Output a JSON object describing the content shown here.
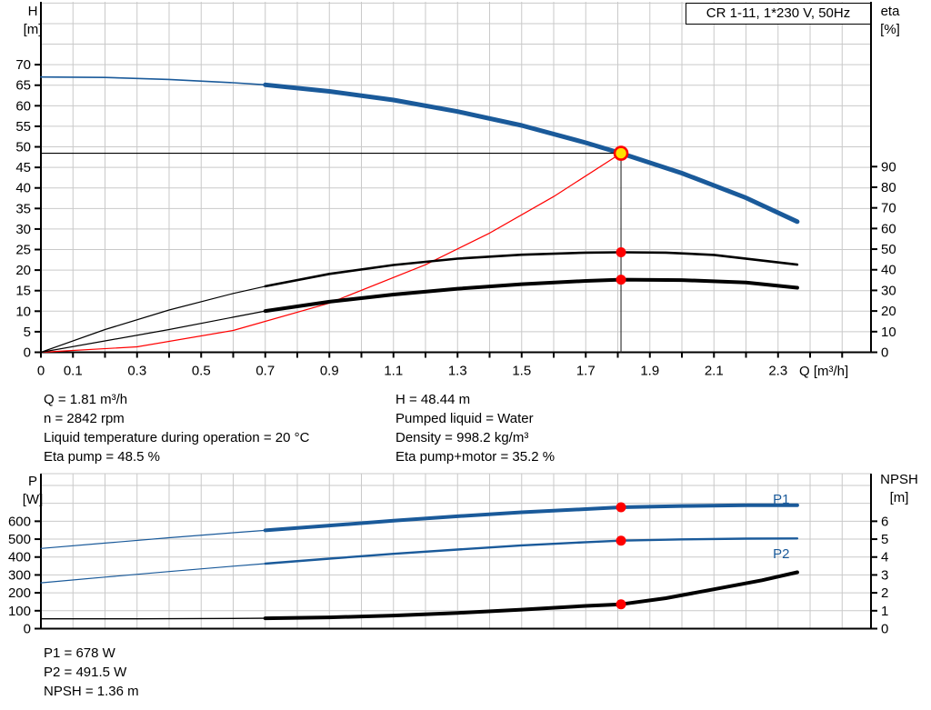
{
  "title_box": {
    "label": "CR 1-11, 1*230 V, 50Hz"
  },
  "colors": {
    "curve_blue": "#1a5a9a",
    "red": "#ff0000",
    "op_yellow": "#ffe100",
    "black": "#000000",
    "grid": "#c9c9c9",
    "crosshair": "#3a3a3a"
  },
  "annotations": {
    "block1_left": [
      "Q = 1.81 m³/h",
      "n = 2842 rpm",
      "Liquid temperature during operation = 20 °C",
      "Eta pump = 48.5 %"
    ],
    "block1_right": [
      "H = 48.44 m",
      "Pumped liquid = Water",
      "Density = 998.2 kg/m³",
      "Eta pump+motor = 35.2 %"
    ],
    "block2": [
      "P1 = 678 W",
      "P2 = 491.5 W",
      "NPSH = 1.36 m"
    ]
  },
  "chart_data": [
    {
      "type": "line",
      "title": "CR 1-11, 1*230 V, 50Hz",
      "x_axis": {
        "label": "Q [m³/h]",
        "lim": [
          0,
          2.59
        ],
        "grid_step": 0.1,
        "tick_step": 0.1,
        "tick_max": 2.5,
        "labeled_ticks": [
          "0",
          "0.1",
          "0.3",
          "0.5",
          "0.7",
          "0.9",
          "1.1",
          "1.3",
          "1.5",
          "1.7",
          "1.9",
          "2.1",
          "2.3"
        ]
      },
      "y_left": {
        "name": "H",
        "unit": "[m]",
        "lim": [
          0,
          85.3
        ],
        "grid_step": 5,
        "ticks": [
          "0",
          "5",
          "10",
          "15",
          "20",
          "25",
          "30",
          "35",
          "40",
          "45",
          "50",
          "55",
          "60",
          "65",
          "70"
        ]
      },
      "y_right": {
        "name": "eta",
        "unit": "[%]",
        "lim": [
          0,
          169.9
        ],
        "ticks": [
          "0",
          "10",
          "20",
          "30",
          "40",
          "50",
          "60",
          "70",
          "80",
          "90"
        ]
      },
      "series": [
        {
          "name": "system-curve",
          "axis": "left",
          "color": "red",
          "width_thin": 1.2,
          "width_bold": 1.2,
          "points": [
            [
              0,
              0
            ],
            [
              0.3,
              1.33
            ],
            [
              0.6,
              5.32
            ],
            [
              0.9,
              11.98
            ],
            [
              1.2,
              21.3
            ],
            [
              1.4,
              29.0
            ],
            [
              1.6,
              37.9
            ],
            [
              1.81,
              48.44
            ]
          ]
        },
        {
          "name": "eta-pump",
          "axis": "right",
          "color": "black",
          "width_thin": 1.2,
          "width_bold": 2.6,
          "bold_from": 0.7,
          "points": [
            [
              0,
              0
            ],
            [
              0.2,
              11
            ],
            [
              0.4,
              20.5
            ],
            [
              0.6,
              28.5
            ],
            [
              0.7,
              32
            ],
            [
              0.9,
              38
            ],
            [
              1.1,
              42.3
            ],
            [
              1.3,
              45.4
            ],
            [
              1.5,
              47.3
            ],
            [
              1.7,
              48.3
            ],
            [
              1.81,
              48.5
            ],
            [
              1.95,
              48.3
            ],
            [
              2.1,
              47.2
            ],
            [
              2.36,
              42.5
            ]
          ]
        },
        {
          "name": "eta-pump-motor",
          "axis": "right",
          "color": "black",
          "width_thin": 1.2,
          "width_bold": 4,
          "bold_from": 0.7,
          "points": [
            [
              0,
              0
            ],
            [
              0.2,
              5.5
            ],
            [
              0.4,
              11
            ],
            [
              0.6,
              17
            ],
            [
              0.7,
              20
            ],
            [
              0.9,
              24.5
            ],
            [
              1.1,
              28
            ],
            [
              1.3,
              30.8
            ],
            [
              1.5,
              33
            ],
            [
              1.7,
              34.6
            ],
            [
              1.81,
              35.2
            ],
            [
              2.0,
              35.0
            ],
            [
              2.2,
              33.8
            ],
            [
              2.36,
              31.3
            ]
          ]
        },
        {
          "name": "head-curve",
          "axis": "left",
          "color": "blue",
          "width_thin": 1.6,
          "width_bold": 5,
          "bold_from": 0.7,
          "points": [
            [
              0,
              67
            ],
            [
              0.2,
              66.9
            ],
            [
              0.4,
              66.4
            ],
            [
              0.6,
              65.6
            ],
            [
              0.7,
              65.1
            ],
            [
              0.9,
              63.5
            ],
            [
              1.1,
              61.4
            ],
            [
              1.3,
              58.6
            ],
            [
              1.5,
              55.2
            ],
            [
              1.7,
              51.0
            ],
            [
              1.81,
              48.44
            ],
            [
              2.0,
              43.6
            ],
            [
              2.2,
              37.6
            ],
            [
              2.36,
              31.8
            ]
          ]
        }
      ],
      "crosshair": {
        "q": 1.81,
        "v": 48.44
      },
      "dots": [
        {
          "q": 1.81,
          "v": 48.5,
          "axis": "right",
          "style": "red"
        },
        {
          "q": 1.81,
          "v": 35.2,
          "axis": "right",
          "style": "red"
        },
        {
          "q": 1.81,
          "v": 48.44,
          "axis": "left",
          "style": "op"
        }
      ]
    },
    {
      "type": "line",
      "x_axis": {
        "label": "",
        "lim": [
          0,
          2.59
        ],
        "grid_step": 0.1,
        "tick_step": 0,
        "tick_max": 0,
        "labeled_ticks": []
      },
      "y_left": {
        "name": "P",
        "unit": "[W]",
        "lim": [
          0,
          866
        ],
        "grid_step": 100,
        "ticks": [
          "0",
          "100",
          "200",
          "300",
          "400",
          "500",
          "600"
        ]
      },
      "y_right": {
        "name": "NPSH",
        "unit": "[m]",
        "lim": [
          0,
          8.66
        ],
        "ticks": [
          "0",
          "1",
          "2",
          "3",
          "4",
          "5",
          "6"
        ]
      },
      "series": [
        {
          "name": "P1",
          "label": "P1",
          "label_at": [
            2.31,
            723
          ],
          "axis": "left",
          "color": "blue",
          "width_thin": 1.2,
          "width_bold": 4,
          "bold_from": 0.7,
          "points": [
            [
              0,
              448
            ],
            [
              0.2,
              478
            ],
            [
              0.4,
              508
            ],
            [
              0.6,
              536
            ],
            [
              0.7,
              549
            ],
            [
              0.9,
              576
            ],
            [
              1.1,
              603
            ],
            [
              1.3,
              628
            ],
            [
              1.5,
              650
            ],
            [
              1.7,
              668
            ],
            [
              1.81,
              678
            ],
            [
              2.0,
              685
            ],
            [
              2.2,
              689
            ],
            [
              2.36,
              689
            ]
          ]
        },
        {
          "name": "P2",
          "label": "P2",
          "label_at": [
            2.31,
            420
          ],
          "axis": "left",
          "color": "blue",
          "width_thin": 1.2,
          "width_bold": 2.4,
          "bold_from": 0.7,
          "points": [
            [
              0,
              256
            ],
            [
              0.2,
              288
            ],
            [
              0.4,
              319
            ],
            [
              0.6,
              349
            ],
            [
              0.7,
              363
            ],
            [
              0.9,
              391
            ],
            [
              1.1,
              418
            ],
            [
              1.3,
              442
            ],
            [
              1.5,
              465
            ],
            [
              1.7,
              483
            ],
            [
              1.81,
              491.5
            ],
            [
              2.0,
              499
            ],
            [
              2.2,
              503
            ],
            [
              2.36,
              504
            ]
          ]
        },
        {
          "name": "NPSH-curve",
          "axis": "right",
          "color": "black",
          "width_thin": 1.4,
          "width_bold": 4,
          "bold_from": 0.7,
          "points": [
            [
              0,
              0.55
            ],
            [
              0.3,
              0.55
            ],
            [
              0.6,
              0.57
            ],
            [
              0.7,
              0.58
            ],
            [
              0.9,
              0.63
            ],
            [
              1.1,
              0.73
            ],
            [
              1.3,
              0.88
            ],
            [
              1.5,
              1.06
            ],
            [
              1.7,
              1.27
            ],
            [
              1.81,
              1.36
            ],
            [
              1.95,
              1.7
            ],
            [
              2.1,
              2.2
            ],
            [
              2.25,
              2.7
            ],
            [
              2.36,
              3.15
            ]
          ]
        }
      ],
      "dots": [
        {
          "q": 1.81,
          "v": 678,
          "axis": "left",
          "style": "red"
        },
        {
          "q": 1.81,
          "v": 491.5,
          "axis": "left",
          "style": "red"
        },
        {
          "q": 1.81,
          "v": 1.36,
          "axis": "right",
          "style": "red"
        }
      ]
    }
  ]
}
